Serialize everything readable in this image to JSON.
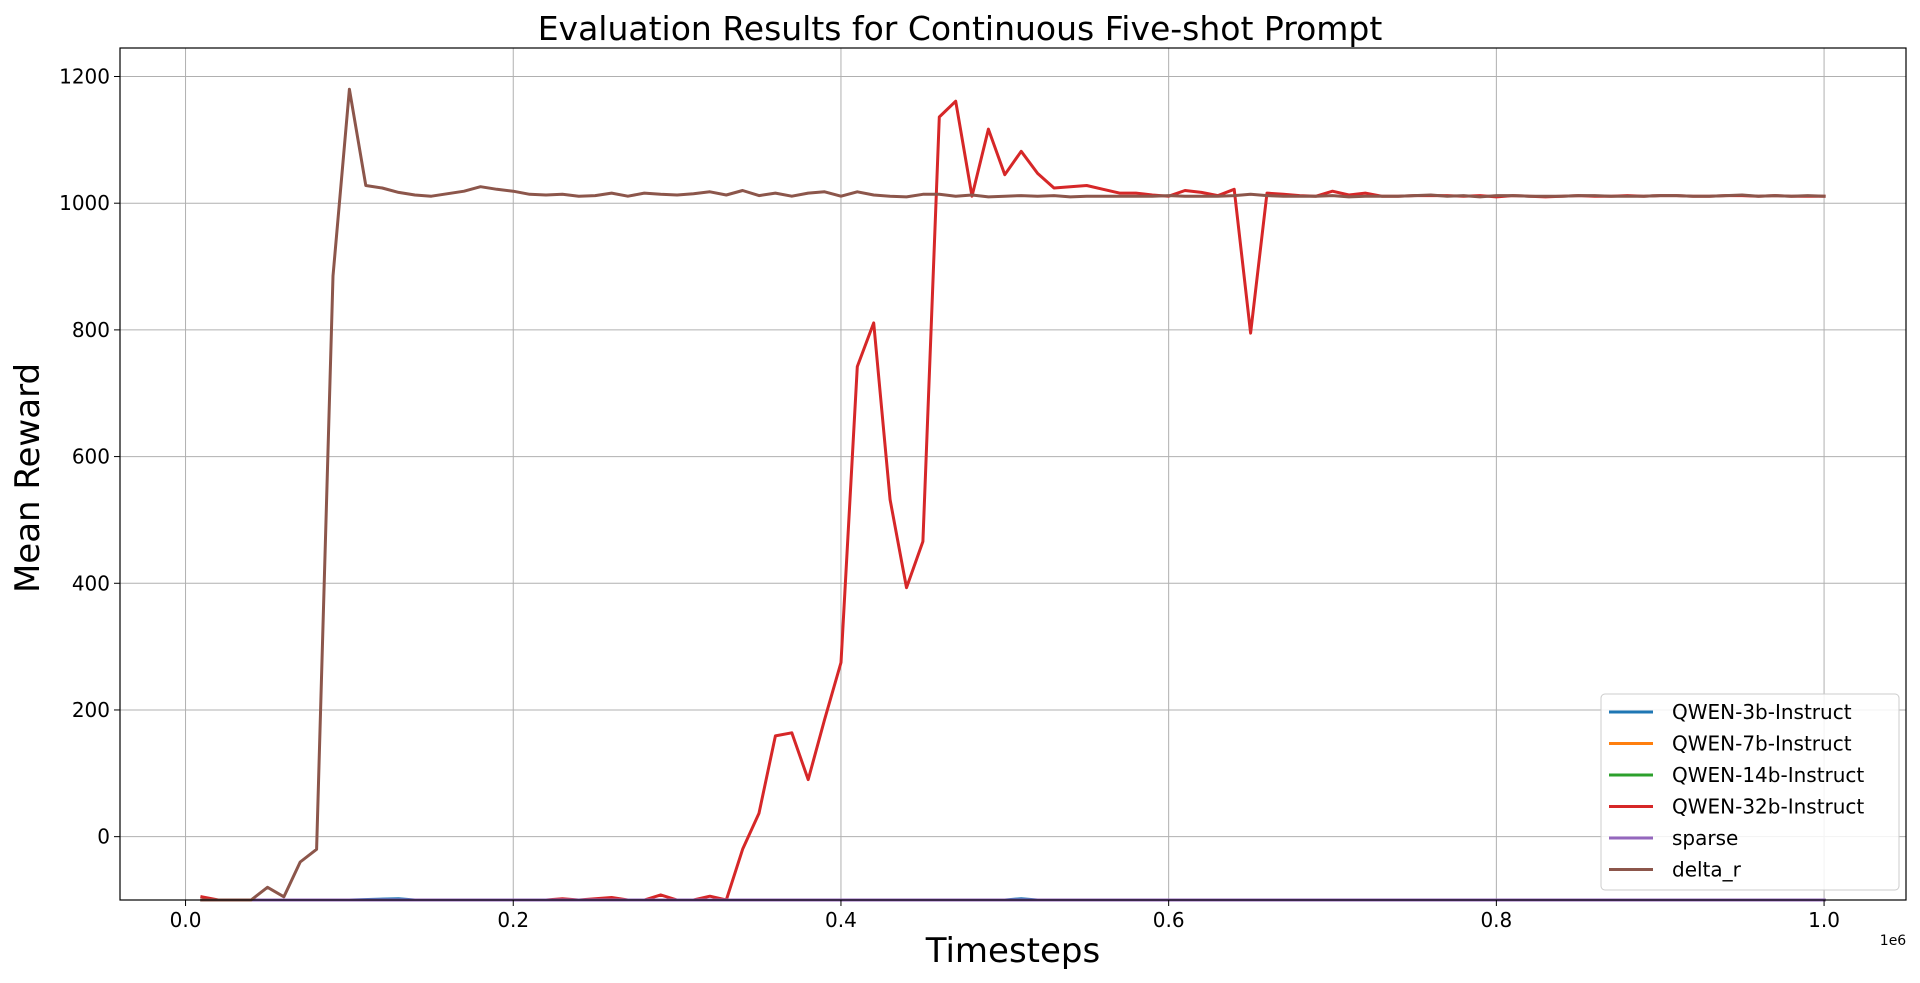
{
  "chart_data": {
    "type": "line",
    "title": "Evaluation Results for Continuous Five-shot Prompt",
    "xlabel": "Timesteps",
    "ylabel": "Mean Reward",
    "x_offset_label": "1e6",
    "xlim": [
      -0.04,
      1.05
    ],
    "ylim": [
      -100,
      1245
    ],
    "x_ticks": [
      0.0,
      0.2,
      0.4,
      0.6,
      0.8,
      1.0
    ],
    "x_tick_labels": [
      "0.0",
      "0.2",
      "0.4",
      "0.6",
      "0.8",
      "1.0"
    ],
    "y_ticks": [
      0,
      200,
      400,
      600,
      800,
      1000,
      1200
    ],
    "y_tick_labels": [
      "0",
      "200",
      "400",
      "600",
      "800",
      "1000",
      "1200"
    ],
    "grid": true,
    "legend_position": "lower right",
    "series": [
      {
        "name": "QWEN-3b-Instruct",
        "color": "#1f77b4",
        "x": [
          0.01,
          0.1,
          0.13,
          0.14,
          0.5,
          0.51,
          0.52,
          1.0
        ],
        "y": [
          -100,
          -100,
          -98,
          -100,
          -100,
          -98,
          -100,
          -100
        ]
      },
      {
        "name": "QWEN-7b-Instruct",
        "color": "#ff7f0e",
        "x": [
          0.01,
          0.5,
          1.0
        ],
        "y": [
          -100,
          -100,
          -100
        ]
      },
      {
        "name": "QWEN-14b-Instruct",
        "color": "#2ca02c",
        "x": [
          0.01,
          0.5,
          1.0
        ],
        "y": [
          -100,
          -100,
          -100
        ]
      },
      {
        "name": "QWEN-32b-Instruct",
        "color": "#d62728",
        "x": [
          0.01,
          0.02,
          0.03,
          0.04,
          0.05,
          0.06,
          0.07,
          0.08,
          0.09,
          0.1,
          0.11,
          0.12,
          0.13,
          0.14,
          0.15,
          0.16,
          0.17,
          0.18,
          0.19,
          0.2,
          0.21,
          0.22,
          0.23,
          0.24,
          0.25,
          0.26,
          0.27,
          0.28,
          0.29,
          0.3,
          0.31,
          0.32,
          0.33,
          0.34,
          0.35,
          0.36,
          0.37,
          0.38,
          0.39,
          0.4,
          0.41,
          0.42,
          0.43,
          0.44,
          0.45,
          0.46,
          0.47,
          0.48,
          0.49,
          0.5,
          0.51,
          0.52,
          0.53,
          0.54,
          0.55,
          0.56,
          0.57,
          0.58,
          0.59,
          0.6,
          0.61,
          0.62,
          0.63,
          0.64,
          0.65,
          0.66,
          0.67,
          0.68,
          0.69,
          0.7,
          0.71,
          0.72,
          0.73,
          0.74,
          0.75,
          0.76,
          0.77,
          0.78,
          0.79,
          0.8,
          0.81,
          0.82,
          0.83,
          0.84,
          0.85,
          0.86,
          0.87,
          0.88,
          0.89,
          0.9,
          0.91,
          0.92,
          0.93,
          0.94,
          0.95,
          0.96,
          0.97,
          0.98,
          0.99,
          1.0
        ],
        "y": [
          -95,
          -100,
          -100,
          -100,
          -100,
          -100,
          -100,
          -100,
          -100,
          -100,
          -100,
          -100,
          -100,
          -100,
          -100,
          -100,
          -100,
          -100,
          -100,
          -100,
          -100,
          -100,
          -98,
          -100,
          -98,
          -96,
          -100,
          -100,
          -92,
          -100,
          -100,
          -94,
          -100,
          -20,
          37,
          159,
          164,
          90,
          185,
          275,
          742,
          811,
          532,
          393,
          466,
          1136,
          1161,
          1011,
          1117,
          1045,
          1082,
          1047,
          1024,
          1026,
          1028,
          1022,
          1016,
          1016,
          1013,
          1011,
          1020,
          1017,
          1012,
          1022,
          795,
          1016,
          1014,
          1012,
          1011,
          1019,
          1013,
          1016,
          1011,
          1011,
          1012,
          1012,
          1012,
          1011,
          1012,
          1010,
          1012,
          1011,
          1010,
          1011,
          1012,
          1011,
          1011,
          1012,
          1011,
          1012,
          1012,
          1011,
          1011,
          1012,
          1012,
          1011,
          1012,
          1011,
          1011,
          1011
        ]
      },
      {
        "name": "sparse",
        "color": "#9467bd",
        "x": [
          0.01,
          0.5,
          1.0
        ],
        "y": [
          -100,
          -100,
          -100
        ]
      },
      {
        "name": "delta_r",
        "color": "#8c564b",
        "x": [
          0.01,
          0.02,
          0.03,
          0.04,
          0.05,
          0.06,
          0.07,
          0.08,
          0.09,
          0.1,
          0.11,
          0.12,
          0.13,
          0.14,
          0.15,
          0.16,
          0.17,
          0.18,
          0.19,
          0.2,
          0.21,
          0.22,
          0.23,
          0.24,
          0.25,
          0.26,
          0.27,
          0.28,
          0.29,
          0.3,
          0.31,
          0.32,
          0.33,
          0.34,
          0.35,
          0.36,
          0.37,
          0.38,
          0.39,
          0.4,
          0.41,
          0.42,
          0.43,
          0.44,
          0.45,
          0.46,
          0.47,
          0.48,
          0.49,
          0.5,
          0.51,
          0.52,
          0.53,
          0.54,
          0.55,
          0.56,
          0.57,
          0.58,
          0.59,
          0.6,
          0.61,
          0.62,
          0.63,
          0.64,
          0.65,
          0.66,
          0.67,
          0.68,
          0.69,
          0.7,
          0.71,
          0.72,
          0.73,
          0.74,
          0.75,
          0.76,
          0.77,
          0.78,
          0.79,
          0.8,
          0.81,
          0.82,
          0.83,
          0.84,
          0.85,
          0.86,
          0.87,
          0.88,
          0.89,
          0.9,
          0.91,
          0.92,
          0.93,
          0.94,
          0.95,
          0.96,
          0.97,
          0.98,
          0.99,
          1.0
        ],
        "y": [
          -100,
          -100,
          -100,
          -100,
          -80,
          -95,
          -40,
          -20,
          885,
          1180,
          1028,
          1024,
          1017,
          1013,
          1011,
          1015,
          1019,
          1026,
          1022,
          1019,
          1014,
          1013,
          1014,
          1011,
          1012,
          1016,
          1011,
          1016,
          1014,
          1013,
          1015,
          1018,
          1013,
          1020,
          1012,
          1016,
          1011,
          1016,
          1018,
          1011,
          1018,
          1013,
          1011,
          1010,
          1014,
          1014,
          1011,
          1013,
          1010,
          1011,
          1012,
          1011,
          1012,
          1010,
          1011,
          1011,
          1011,
          1011,
          1011,
          1012,
          1011,
          1011,
          1011,
          1012,
          1014,
          1012,
          1011,
          1011,
          1011,
          1012,
          1010,
          1011,
          1011,
          1011,
          1012,
          1013,
          1011,
          1012,
          1010,
          1012,
          1012,
          1011,
          1011,
          1011,
          1012,
          1012,
          1011,
          1011,
          1011,
          1012,
          1012,
          1011,
          1011,
          1012,
          1013,
          1011,
          1012,
          1011,
          1012,
          1011
        ]
      }
    ]
  }
}
